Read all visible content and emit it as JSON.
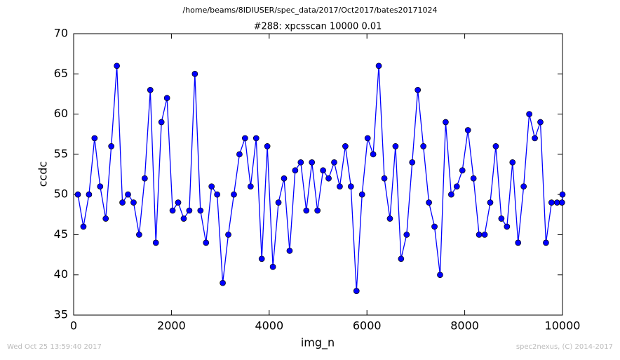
{
  "chart_data": {
    "type": "line",
    "suptitle": "/home/beams/8IDIUSER/spec_data/2017/Oct2017/bates20171024",
    "title": "#288: xpcsscan 10000 0.01",
    "xlabel": "img_n",
    "ylabel": "ccdc",
    "footer_left": "Wed Oct 25 13:59:40 2017",
    "footer_right": "spec2nexus, (C) 2014-2017",
    "color": "#0000ff",
    "marker": true,
    "grid": false,
    "xlim": [
      0,
      10000
    ],
    "xticks": [
      0,
      2000,
      4000,
      6000,
      8000,
      10000
    ],
    "ylim": [
      35,
      70
    ],
    "yticks": [
      35,
      40,
      45,
      50,
      55,
      60,
      65,
      70
    ],
    "x": [
      86,
      200,
      314,
      428,
      542,
      656,
      770,
      884,
      998,
      1112,
      1226,
      1340,
      1454,
      1568,
      1682,
      1796,
      1910,
      2024,
      2138,
      2252,
      2366,
      2480,
      2594,
      2708,
      2822,
      2936,
      3050,
      3164,
      3278,
      3392,
      3506,
      3620,
      3734,
      3848,
      3962,
      4076,
      4190,
      4304,
      4418,
      4532,
      4646,
      4760,
      4874,
      4988,
      5102,
      5216,
      5330,
      5444,
      5558,
      5672,
      5786,
      5900,
      6014,
      6128,
      6242,
      6356,
      6470,
      6584,
      6698,
      6812,
      6926,
      7040,
      7154,
      7268,
      7382,
      7496,
      7610,
      7724,
      7838,
      7952,
      8066,
      8180,
      8294,
      8408,
      8522,
      8636,
      8750,
      8864,
      8978,
      9092,
      9206,
      9320,
      9434,
      9548,
      9662,
      9776,
      9890,
      9990,
      10000
    ],
    "values": [
      50,
      46,
      50,
      57,
      51,
      47,
      56,
      66,
      49,
      50,
      49,
      45,
      52,
      63,
      44,
      59,
      62,
      48,
      49,
      47,
      48,
      65,
      48,
      44,
      51,
      50,
      39,
      45,
      50,
      55,
      57,
      51,
      57,
      42,
      56,
      41,
      49,
      52,
      43,
      53,
      54,
      48,
      54,
      48,
      53,
      52,
      54,
      51,
      56,
      51,
      38,
      50,
      57,
      55,
      66,
      52,
      47,
      56,
      42,
      45,
      54,
      63,
      56,
      49,
      46,
      40,
      59,
      50,
      51,
      53,
      58,
      52,
      45,
      45,
      49,
      56,
      47,
      46,
      54,
      44,
      51,
      60,
      57,
      59,
      44,
      49,
      49,
      49,
      50
    ]
  }
}
